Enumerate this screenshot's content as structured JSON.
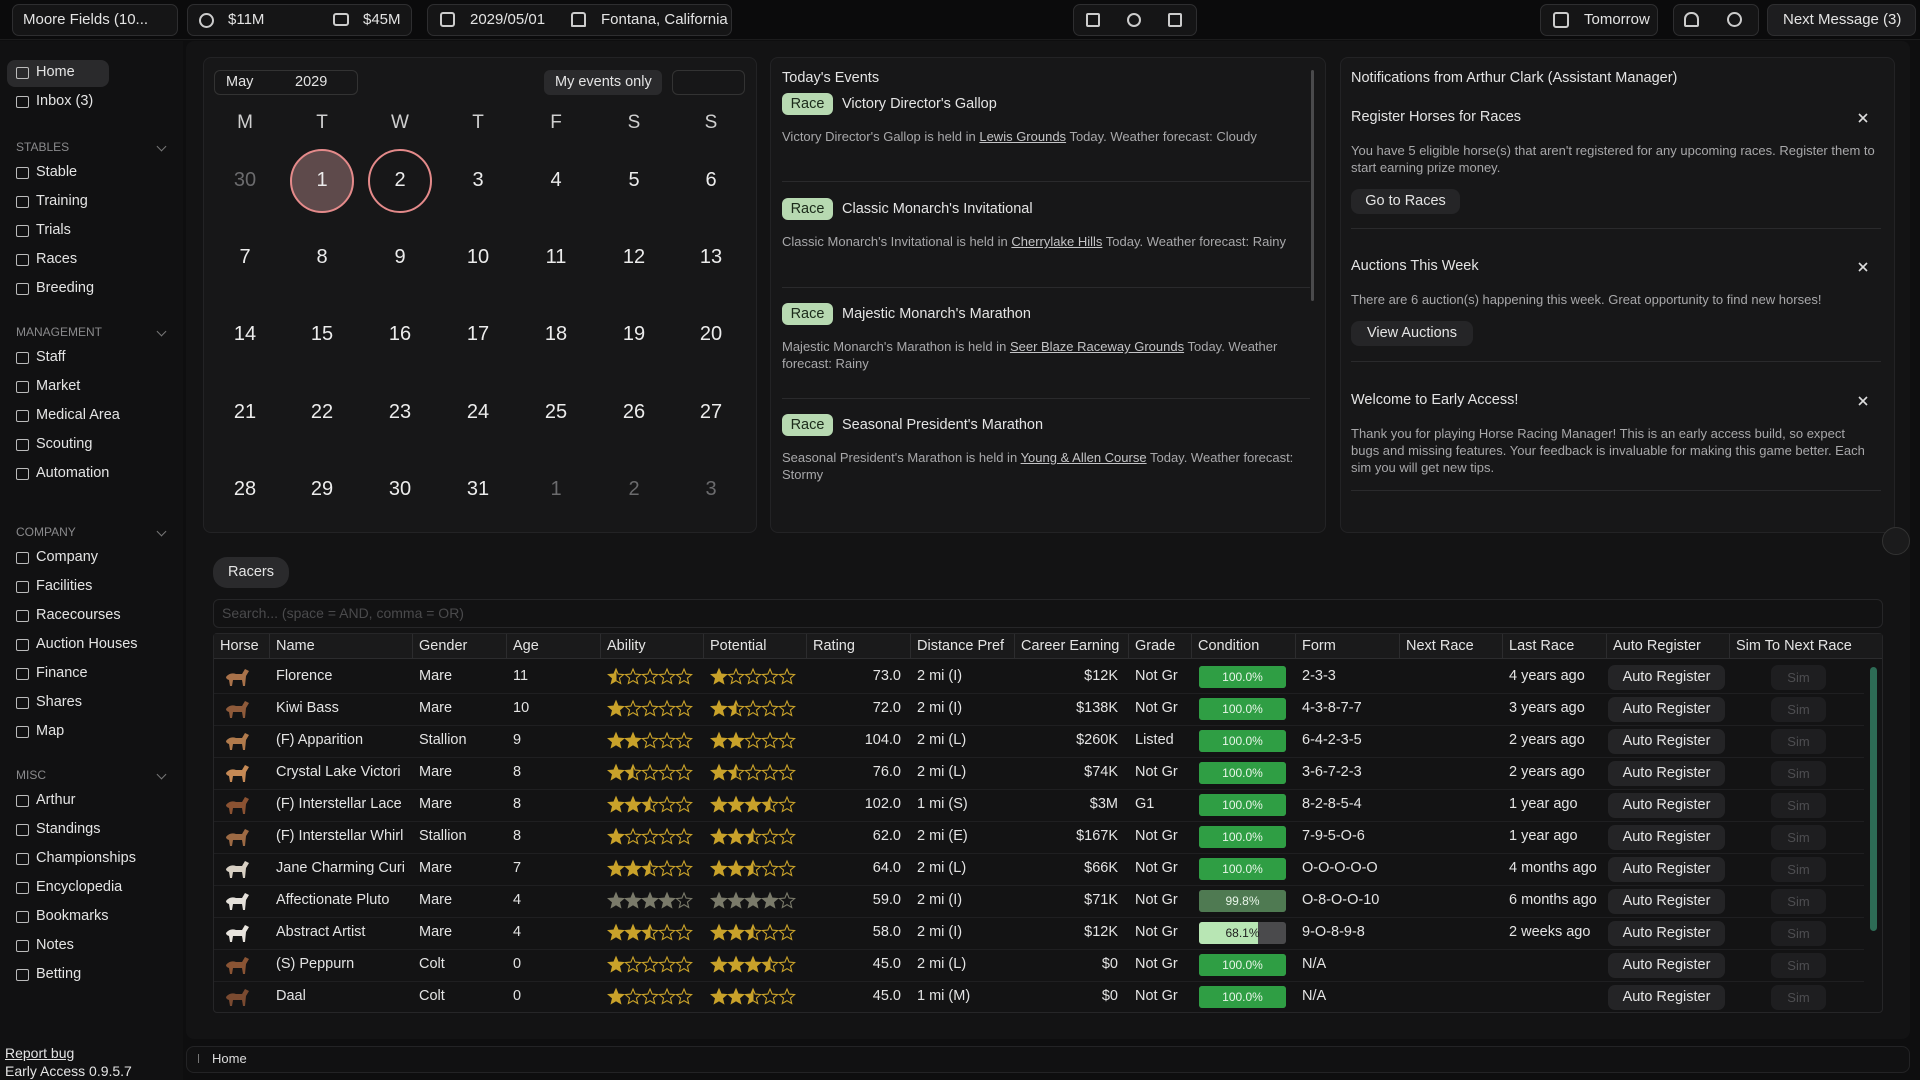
{
  "top_bar": {
    "farm": "Moore Fields (10...",
    "cash": "$11M",
    "net_worth": "$45M",
    "date": "2029/05/01",
    "location": "Fontana, California",
    "advance": "Tomorrow",
    "next_message": "Next Message (3)"
  },
  "sidebar": {
    "top_items": [
      "Home",
      "Inbox (3)"
    ],
    "sections": [
      {
        "title": "STABLES",
        "items": [
          "Stable",
          "Training",
          "Trials",
          "Races",
          "Breeding"
        ]
      },
      {
        "title": "MANAGEMENT",
        "items": [
          "Staff",
          "Market",
          "Medical Area",
          "Scouting",
          "Automation"
        ]
      },
      {
        "title": "COMPANY",
        "items": [
          "Company",
          "Facilities",
          "Racecourses",
          "Auction Houses",
          "Finance",
          "Shares",
          "Map"
        ]
      },
      {
        "title": "MISC",
        "items": [
          "Arthur",
          "Standings",
          "Championships",
          "Encyclopedia",
          "Bookmarks",
          "Notes",
          "Betting"
        ]
      }
    ],
    "report_bug": "Report bug",
    "version": "Early Access 0.9.5.7"
  },
  "calendar": {
    "month": "May",
    "year": "2029",
    "filter": "My events only",
    "weekdays": [
      "M",
      "T",
      "W",
      "T",
      "F",
      "S",
      "S"
    ],
    "weeks": [
      [
        30,
        1,
        2,
        3,
        4,
        5,
        6
      ],
      [
        7,
        8,
        9,
        10,
        11,
        12,
        13
      ],
      [
        14,
        15,
        16,
        17,
        18,
        19,
        20
      ],
      [
        21,
        22,
        23,
        24,
        25,
        26,
        27
      ],
      [
        28,
        29,
        30,
        31,
        1,
        2,
        3
      ]
    ]
  },
  "events": {
    "title": "Today's Events",
    "items": [
      {
        "tag": "Race",
        "name": "Victory Director's Gallop",
        "text_before": "Victory Director's Gallop is held in",
        "link": "Lewis Grounds",
        "text_after": "Today. Weather forecast: Cloudy"
      },
      {
        "tag": "Race",
        "name": "Classic Monarch's Invitational",
        "text_before": "Classic Monarch's Invitational is held in",
        "link": "Cherrylake Hills",
        "text_after": "Today. Weather forecast: Rainy"
      },
      {
        "tag": "Race",
        "name": "Majestic Monarch's Marathon",
        "text_before": "Majestic Monarch's Marathon is held in",
        "link": "Seer Blaze Raceway Grounds",
        "text_after": "Today. Weather forecast: Rainy"
      },
      {
        "tag": "Race",
        "name": "Seasonal President's Marathon",
        "text_before": "Seasonal President's Marathon is held in",
        "link": "Young & Allen Course",
        "text_after": "Today. Weather forecast: Stormy"
      }
    ]
  },
  "notifications": {
    "title": "Notifications from Arthur Clark (Assistant Manager)",
    "items": [
      {
        "title": "Register Horses for Races",
        "body": "You have 5 eligible horse(s) that aren't registered for any upcoming races. Register them to start earning prize money.",
        "button": "Go to Races"
      },
      {
        "title": "Auctions This Week",
        "body": "There are 6 auction(s) happening this week. Great opportunity to find new horses!",
        "button": "View Auctions"
      },
      {
        "title": "Welcome to Early Access!",
        "body": "Thank you for playing Horse Racing Manager! This is an early access build, so expect bugs and missing features. Your feedback is invaluable for making this game better. Each sim you will get new tips."
      }
    ]
  },
  "racers": {
    "tab": "Racers",
    "search_placeholder": "Search... (space = AND, comma = OR)",
    "columns": [
      "Horse",
      "Name",
      "Gender",
      "Age",
      "Ability",
      "Potential",
      "Rating",
      "Distance Pref",
      "Career Earning",
      "Grade",
      "Condition",
      "Form",
      "Next Race",
      "Last Race",
      "Auto Register",
      "Sim To Next Race"
    ],
    "auto_register": "Auto Register",
    "sim": "Sim",
    "rows": [
      {
        "name": "Florence",
        "gender": "Mare",
        "age": 11,
        "ability": 0.5,
        "potential": 1,
        "rating": "73.0",
        "distance": "2 mi (I)",
        "earning": "$12K",
        "grade": "Not Gr",
        "condition": {
          "value": 100,
          "label": "100.0%"
        },
        "form": "2-3-3",
        "last_race": "4 years ago"
      },
      {
        "name": "Kiwi Bass",
        "gender": "Mare",
        "age": 10,
        "ability": 1,
        "potential": 1.5,
        "rating": "72.0",
        "distance": "2 mi (I)",
        "earning": "$138K",
        "grade": "Not Gr",
        "condition": {
          "value": 100,
          "label": "100.0%"
        },
        "form": "4-3-8-7-7",
        "last_race": "3 years ago"
      },
      {
        "name": "(F) Apparition",
        "gender": "Stallion",
        "age": 9,
        "ability": 2,
        "potential": 2,
        "rating": "104.0",
        "distance": "2 mi (L)",
        "earning": "$260K",
        "grade": "Listed",
        "condition": {
          "value": 100,
          "label": "100.0%"
        },
        "form": "6-4-2-3-5",
        "last_race": "2 years ago"
      },
      {
        "name": "Crystal Lake Victori",
        "gender": "Mare",
        "age": 8,
        "ability": 1.5,
        "potential": 1.5,
        "rating": "76.0",
        "distance": "2 mi (L)",
        "earning": "$74K",
        "grade": "Not Gr",
        "condition": {
          "value": 100,
          "label": "100.0%"
        },
        "form": "3-6-7-2-3",
        "last_race": "2 years ago"
      },
      {
        "name": "(F) Interstellar Lace",
        "gender": "Mare",
        "age": 8,
        "ability": 2.5,
        "potential": 3.5,
        "rating": "102.0",
        "distance": "1 mi (S)",
        "earning": "$3M",
        "grade": "G1",
        "condition": {
          "value": 100,
          "label": "100.0%"
        },
        "form": "8-2-8-5-4",
        "last_race": "1 year ago"
      },
      {
        "name": "(F) Interstellar Whirl",
        "gender": "Stallion",
        "age": 8,
        "ability": 1,
        "potential": 2.5,
        "rating": "62.0",
        "distance": "2 mi (E)",
        "earning": "$167K",
        "grade": "Not Gr",
        "condition": {
          "value": 100,
          "label": "100.0%"
        },
        "form": "7-9-5-O-6",
        "last_race": "1 year ago"
      },
      {
        "name": "Jane Charming Curi",
        "gender": "Mare",
        "age": 7,
        "ability": 2.5,
        "potential": 2.5,
        "rating": "64.0",
        "distance": "2 mi (L)",
        "earning": "$66K",
        "grade": "Not Gr",
        "condition": {
          "value": 100,
          "label": "100.0%"
        },
        "form": "O-O-O-O-O",
        "last_race": "4 months ago"
      },
      {
        "name": "Affectionate Pluto",
        "gender": "Mare",
        "age": 4,
        "ability": 4,
        "potential": 4,
        "rating": "59.0",
        "distance": "2 mi (I)",
        "earning": "$71K",
        "grade": "Not Gr",
        "condition": {
          "value": 99.8,
          "label": "99.8%"
        },
        "form": "O-8-O-O-10",
        "last_race": "6 months ago"
      },
      {
        "name": "Abstract Artist",
        "gender": "Mare",
        "age": 4,
        "ability": 2.5,
        "potential": 2.5,
        "rating": "58.0",
        "distance": "2 mi (I)",
        "earning": "$12K",
        "grade": "Not Gr",
        "condition": {
          "value": 68.1,
          "label": "68.1%"
        },
        "form": "9-O-8-9-8",
        "last_race": "2 weeks ago"
      },
      {
        "name": "(S) Peppurn",
        "gender": "Colt",
        "age": 0,
        "ability": 1,
        "potential": 3.5,
        "rating": "45.0",
        "distance": "2 mi (L)",
        "earning": "$0",
        "grade": "Not Gr",
        "condition": {
          "value": 100,
          "label": "100.0%"
        },
        "form": "N/A"
      },
      {
        "name": "Daal",
        "gender": "Colt",
        "age": 0,
        "ability": 1,
        "potential": 2.5,
        "rating": "45.0",
        "distance": "1 mi (M)",
        "earning": "$0",
        "grade": "Not Gr",
        "condition": {
          "value": 100,
          "label": "100.0%"
        },
        "form": "N/A"
      }
    ]
  },
  "breadcrumb": "Home"
}
